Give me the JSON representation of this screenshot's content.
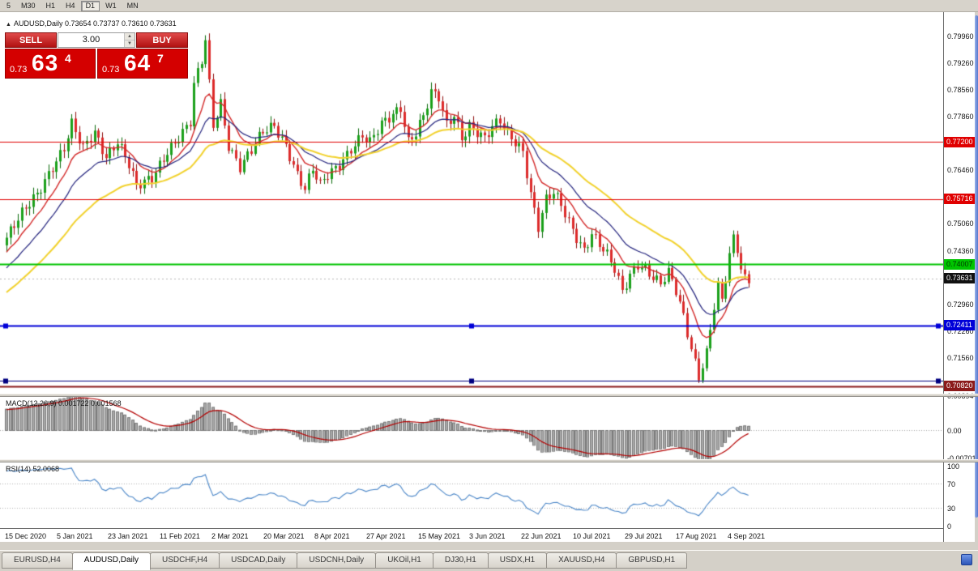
{
  "toolbar": {
    "periods": [
      {
        "label": "5",
        "active": false
      },
      {
        "label": "M30",
        "active": false
      },
      {
        "label": "H1",
        "active": false
      },
      {
        "label": "H4",
        "active": false
      },
      {
        "label": "D1",
        "active": true
      },
      {
        "label": "W1",
        "active": false
      },
      {
        "label": "MN",
        "active": false
      }
    ]
  },
  "chart": {
    "symbol_line": "AUDUSD,Daily 0.73654 0.73737 0.73610 0.73631",
    "bid": {
      "label": "0.73631",
      "price": 0.73631,
      "bg": "#111111",
      "text": "#ffffff"
    },
    "y_ticks": [
      "0.79960",
      "0.79260",
      "0.78560",
      "0.77860",
      "0.76460",
      "0.75060",
      "0.74360",
      "0.72960",
      "0.72260",
      "0.71560"
    ],
    "hlines": [
      {
        "price": 0.772,
        "label": "0.77200",
        "color": "#e00000",
        "width": 1,
        "text": "#ffffff",
        "handles": false
      },
      {
        "price": 0.75716,
        "label": "0.75716",
        "color": "#e00000",
        "width": 1,
        "text": "#ffffff",
        "handles": false
      },
      {
        "price": 0.74007,
        "label": "0.74007",
        "color": "#00c400",
        "width": 2,
        "text": "#003800",
        "handles": false
      },
      {
        "price": 0.72411,
        "label": "0.72411",
        "color": "#0000d8",
        "width": 2,
        "text": "#ffffff",
        "handles": true
      },
      {
        "price": 0.7095,
        "label": "",
        "color": "#000080",
        "width": 1,
        "text": "#ffffff",
        "handles": true
      },
      {
        "price": 0.7082,
        "label": "0.70820",
        "color": "#8b1a1a",
        "width": 2,
        "text": "#ffffff",
        "handles": false
      }
    ]
  },
  "trade": {
    "sell_label": "SELL",
    "buy_label": "BUY",
    "volume": "3.00",
    "sell_price_small": "0.73",
    "sell_price_big": "63",
    "sell_price_sup": "4",
    "buy_price_small": "0.73",
    "buy_price_big": "64",
    "buy_price_sup": "7"
  },
  "macd": {
    "title": "MACD(12,26,9) 0.001722 0.001568",
    "ticks": [
      {
        "v": 0.00894,
        "label": "0.00894"
      },
      {
        "v": 0,
        "label": "0.00"
      },
      {
        "v": -0.00701,
        "label": "-0.00701"
      }
    ]
  },
  "rsi": {
    "title": "RSI(14) 52.0068",
    "ticks": [
      {
        "v": 100,
        "label": "100"
      },
      {
        "v": 70,
        "label": "70"
      },
      {
        "v": 30,
        "label": "30"
      },
      {
        "v": 0,
        "label": "0"
      }
    ],
    "levels": [
      70,
      30
    ]
  },
  "x_axis": {
    "label_step": 13.5,
    "labels": [
      "15 Dec 2020",
      "5 Jan 2021",
      "23 Jan 2021",
      "11 Feb 2021",
      "2 Mar 2021",
      "20 Mar 2021",
      "8 Apr 2021",
      "27 Apr 2021",
      "15 May 2021",
      "3 Jun 2021",
      "22 Jun 2021",
      "10 Jul 2021",
      "29 Jul 2021",
      "17 Aug 2021",
      "4 Sep 2021"
    ]
  },
  "tabs": [
    {
      "label": "EURUSD,H4",
      "active": false
    },
    {
      "label": "AUDUSD,Daily",
      "active": true
    },
    {
      "label": "USDCHF,H4",
      "active": false
    },
    {
      "label": "USDCAD,Daily",
      "active": false
    },
    {
      "label": "USDCNH,Daily",
      "active": false
    },
    {
      "label": "UKOil,H1",
      "active": false
    },
    {
      "label": "DJ30,H1",
      "active": false
    },
    {
      "label": "USDX,H1",
      "active": false
    },
    {
      "label": "XAUUSD,H4",
      "active": false
    },
    {
      "label": "GBPUSD,H1",
      "active": false
    }
  ],
  "chart_data": {
    "type": "candlestick",
    "symbol": "AUDUSD",
    "timeframe": "Daily",
    "ohlc_display": "0.73654 0.73737 0.73610 0.73631",
    "visible_price_range": [
      0.706,
      0.806
    ],
    "candles": 195,
    "first_candle_x": 8,
    "candle_spacing_px": 4.72,
    "close_waypoints": [
      [
        0,
        0.747
      ],
      [
        4,
        0.753
      ],
      [
        8,
        0.7585
      ],
      [
        12,
        0.766
      ],
      [
        15,
        0.7705
      ],
      [
        17,
        0.7765
      ],
      [
        20,
        0.77
      ],
      [
        23,
        0.7745
      ],
      [
        26,
        0.7685
      ],
      [
        29,
        0.7725
      ],
      [
        32,
        0.766
      ],
      [
        34,
        0.76
      ],
      [
        38,
        0.7625
      ],
      [
        42,
        0.77
      ],
      [
        46,
        0.7745
      ],
      [
        48,
        0.777
      ],
      [
        49,
        0.7865
      ],
      [
        51,
        0.793
      ],
      [
        52,
        0.7985
      ],
      [
        53,
        0.787
      ],
      [
        54,
        0.7765
      ],
      [
        56,
        0.7825
      ],
      [
        58,
        0.7715
      ],
      [
        61,
        0.7655
      ],
      [
        64,
        0.7695
      ],
      [
        67,
        0.7745
      ],
      [
        70,
        0.7765
      ],
      [
        73,
        0.7715
      ],
      [
        76,
        0.7635
      ],
      [
        78,
        0.7595
      ],
      [
        80,
        0.7645
      ],
      [
        82,
        0.7605
      ],
      [
        84,
        0.7635
      ],
      [
        87,
        0.7665
      ],
      [
        90,
        0.7705
      ],
      [
        93,
        0.7735
      ],
      [
        95,
        0.7715
      ],
      [
        98,
        0.7765
      ],
      [
        101,
        0.7795
      ],
      [
        103,
        0.7815
      ],
      [
        105,
        0.7725
      ],
      [
        107,
        0.7745
      ],
      [
        109,
        0.7785
      ],
      [
        111,
        0.7845
      ],
      [
        113,
        0.7835
      ],
      [
        115,
        0.7765
      ],
      [
        117,
        0.7795
      ],
      [
        119,
        0.7735
      ],
      [
        121,
        0.7765
      ],
      [
        123,
        0.7745
      ],
      [
        125,
        0.7725
      ],
      [
        127,
        0.7755
      ],
      [
        129,
        0.7775
      ],
      [
        131,
        0.7745
      ],
      [
        133,
        0.7725
      ],
      [
        135,
        0.77
      ],
      [
        137,
        0.7585
      ],
      [
        139,
        0.7495
      ],
      [
        141,
        0.7565
      ],
      [
        143,
        0.7585
      ],
      [
        145,
        0.7555
      ],
      [
        147,
        0.7515
      ],
      [
        149,
        0.7475
      ],
      [
        151,
        0.744
      ],
      [
        153,
        0.748
      ],
      [
        155,
        0.745
      ],
      [
        157,
        0.742
      ],
      [
        159,
        0.7385
      ],
      [
        161,
        0.733
      ],
      [
        163,
        0.7375
      ],
      [
        165,
        0.7405
      ],
      [
        167,
        0.739
      ],
      [
        169,
        0.7365
      ],
      [
        171,
        0.7345
      ],
      [
        173,
        0.7375
      ],
      [
        175,
        0.733
      ],
      [
        177,
        0.7265
      ],
      [
        179,
        0.7185
      ],
      [
        181,
        0.711
      ],
      [
        183,
        0.717
      ],
      [
        184,
        0.723
      ],
      [
        185,
        0.729
      ],
      [
        186,
        0.734
      ],
      [
        187,
        0.73
      ],
      [
        188,
        0.736
      ],
      [
        189,
        0.742
      ],
      [
        190,
        0.7465
      ],
      [
        191,
        0.744
      ],
      [
        192,
        0.739
      ],
      [
        193,
        0.7365
      ],
      [
        194,
        0.7363
      ]
    ],
    "noise": {
      "a1": 0.0013,
      "f1": 1.93,
      "a2": 0.0006,
      "f2": 0.41
    },
    "prehistory": {
      "bars": 40,
      "start": 0.713
    },
    "colors": {
      "up": "#1ba11b",
      "up_edge": "#0b6b0b",
      "down": "#dd2c2c",
      "down_edge": "#8f1111",
      "bid_line": "#b8b8b8"
    },
    "moving_averages": [
      {
        "type": "EMA",
        "period": 10,
        "color": "#d42a2a",
        "width": 1.4
      },
      {
        "type": "EMA",
        "period": 20,
        "color": "#24247e",
        "width": 1.2
      },
      {
        "type": "EMA",
        "period": 40,
        "color": "#f2d22e",
        "width": 2
      }
    ],
    "macd": {
      "fast": 12,
      "slow": 26,
      "signal": 9,
      "bar_fill": "#ababab",
      "bar_edge": "#7a7a7a",
      "line_color": "#b40000",
      "value": 0.001722,
      "signal_value": 0.001568,
      "axis_max": 0.00894,
      "axis_min": -0.00701
    },
    "rsi": {
      "period": 14,
      "color": "#4a86c8",
      "value": 52.0068,
      "levels": [
        70,
        30
      ]
    }
  }
}
